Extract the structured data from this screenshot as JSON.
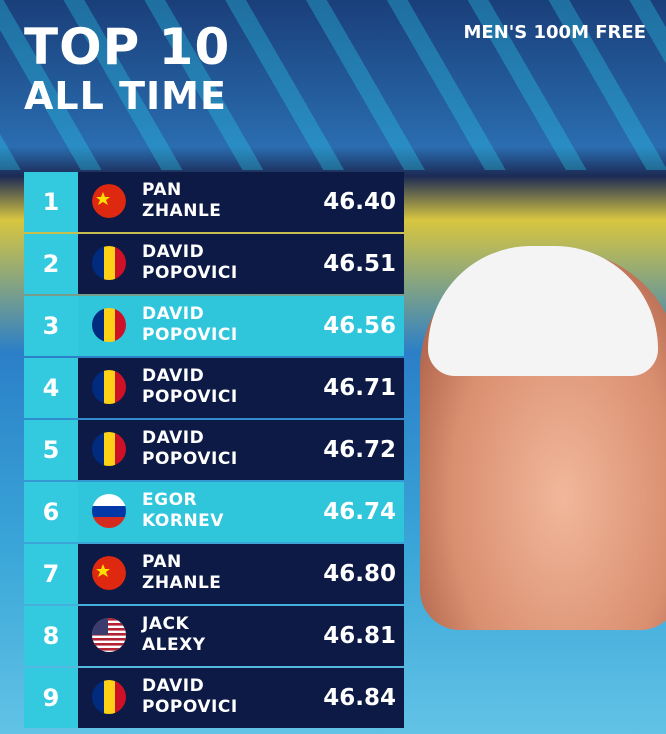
{
  "header": {
    "title_line1": "TOP 10",
    "title_line2": "ALL TIME",
    "event": "MEN'S 100M FREE"
  },
  "table": {
    "rows": [
      {
        "rank": 1,
        "first": "PAN",
        "last": "ZHANLE",
        "time": "46.40"
      },
      {
        "rank": 2,
        "first": "DAVID",
        "last": "POPOVICI",
        "time": "46.51"
      },
      {
        "rank": 3,
        "first": "DAVID",
        "last": "POPOVICI",
        "time": "46.56"
      },
      {
        "rank": 4,
        "first": "DAVID",
        "last": "POPOVICI",
        "time": "46.71"
      },
      {
        "rank": 5,
        "first": "DAVID",
        "last": "POPOVICI",
        "time": "46.72"
      },
      {
        "rank": 6,
        "first": "EGOR",
        "last": "KORNEV",
        "time": "46.74"
      },
      {
        "rank": 7,
        "first": "PAN",
        "last": "ZHANLE",
        "time": "46.80"
      },
      {
        "rank": 8,
        "first": "JACK",
        "last": "ALEXY",
        "time": "46.81"
      },
      {
        "rank": 9,
        "first": "DAVID",
        "last": "POPOVICI",
        "time": "46.84"
      }
    ]
  }
}
